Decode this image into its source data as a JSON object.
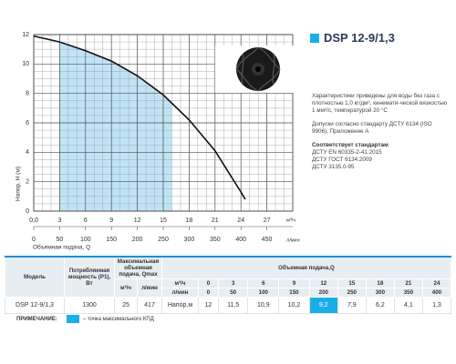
{
  "chart_data": {
    "type": "line",
    "y_label": "Напор, H (м)",
    "x_label": "Объемная подача, Q",
    "x_unit": "м³/ч",
    "x2_unit": "л/мин",
    "x": [
      0,
      3,
      6,
      9,
      12,
      15,
      18,
      21,
      24,
      24.5
    ],
    "values": [
      11.9,
      11.5,
      10.9,
      10.2,
      9.2,
      7.9,
      6.2,
      4.1,
      1.3,
      0.8
    ],
    "color": "#111111",
    "xlim": [
      0,
      30
    ],
    "xticks": [
      {
        "value": 0,
        "label": "0,0"
      },
      3,
      6,
      9,
      12,
      15,
      18,
      21,
      24,
      27
    ],
    "x2lim": [
      0,
      500
    ],
    "x2ticks": [
      0,
      50,
      100,
      150,
      200,
      250,
      300,
      350,
      400,
      450
    ],
    "ylim": [
      0,
      12
    ],
    "yticks": [
      0,
      2,
      4,
      6,
      8,
      10,
      12
    ],
    "grid": true,
    "shade_x": [
      3,
      16
    ],
    "shade_color": "#bfe4f6"
  },
  "product": {
    "title": "DSP 12-9/1,3",
    "notes": [
      "Характеристики приведены для воды без газа с плотностью 1,0 кг/дм³, кинемати-ческой вязкостью 1 мм²/с, температурой 20 °С",
      "Допуски согласно стандарту ДСТУ 6134 (ISO 9906), Приложение А"
    ],
    "standards_title": "Соответствует стандартам",
    "standards": [
      "ДСТУ EN 60335-2-41:2015",
      "ДСТУ ГОСТ 6134:2009",
      "ДСТУ 3135.0-95"
    ]
  },
  "table": {
    "headers": {
      "model": "Модель",
      "power": "Потребляемая мощность (P1), Вт",
      "qmax": "Максимальная объемная подача, Qmax",
      "qmax_units": [
        "м³/ч",
        "л/мин"
      ],
      "flow": "Объемная подача,Q",
      "flow_m3h_label": "м³/ч",
      "flow_lmin_label": "л/мин",
      "flow_m3h": [
        "0",
        "3",
        "6",
        "9",
        "12",
        "15",
        "18",
        "21",
        "24"
      ],
      "flow_lmin": [
        "0",
        "50",
        "100",
        "150",
        "200",
        "250",
        "300",
        "350",
        "400"
      ]
    },
    "row": {
      "model": "DSP 12-9/1,3",
      "power": "1300",
      "qmax_m3h": "25",
      "qmax_lmin": "417",
      "head_label": "Напор,м",
      "heads": [
        "12",
        "11,5",
        "10,9",
        "10,2",
        "9,2",
        "7,9",
        "6,2",
        "4,1",
        "1,3"
      ]
    },
    "highlight_index": 4
  },
  "footnote": {
    "label": "ПРИМЕЧАНИЕ:",
    "text": "– точка максимального КПД"
  }
}
